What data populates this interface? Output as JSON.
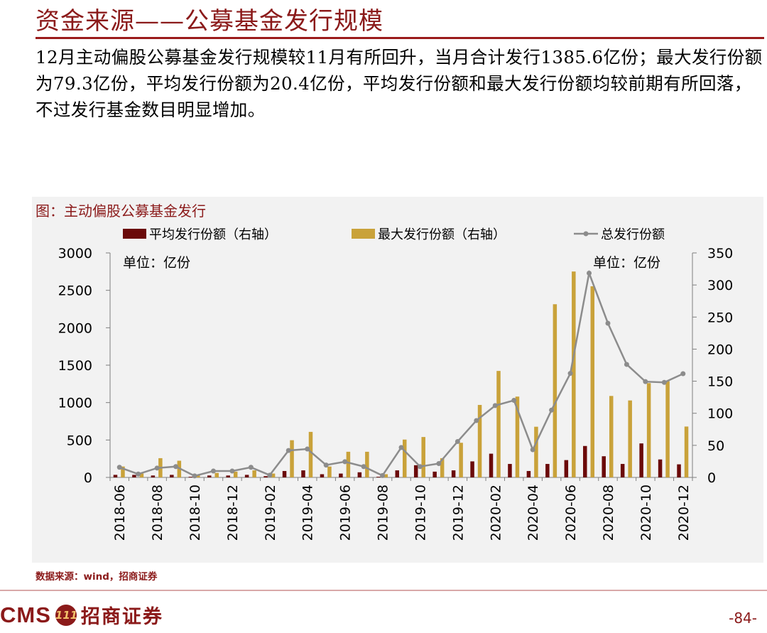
{
  "header": {
    "title": "资金来源——公募基金发行规模",
    "summary": "12月主动偏股公募基金发行规模较11月有所回升，当月合计发行1385.6亿份；最大发行份额为79.3亿份，平均发行份额为20.4亿份，平均发行份额和最大发行份额均较前期有所回落，不过发行基金数目明显增加。"
  },
  "chart_data": {
    "type": "bar",
    "title": "图：主动偏股公募基金发行",
    "categories": [
      "2018-06",
      "2018-07",
      "2018-08",
      "2018-09",
      "2018-10",
      "2018-11",
      "2018-12",
      "2019-01",
      "2019-02",
      "2019-03",
      "2019-04",
      "2019-05",
      "2019-06",
      "2019-07",
      "2019-08",
      "2019-09",
      "2019-10",
      "2019-11",
      "2019-12",
      "2020-01",
      "2020-02",
      "2020-03",
      "2020-04",
      "2020-05",
      "2020-06",
      "2020-07",
      "2020-08",
      "2020-09",
      "2020-10",
      "2020-11",
      "2020-12"
    ],
    "x_tick_labels": [
      "2018-06",
      "2018-08",
      "2018-10",
      "2018-12",
      "2019-02",
      "2019-04",
      "2019-06",
      "2019-08",
      "2019-10",
      "2019-12",
      "2020-02",
      "2020-04",
      "2020-06",
      "2020-08",
      "2020-10",
      "2020-12"
    ],
    "series": [
      {
        "name": "平均发行份额（右轴）",
        "kind": "bar",
        "axis": "right",
        "color": "#6b0a0a",
        "values": [
          4,
          4,
          3,
          4,
          1,
          3,
          3,
          4,
          2,
          10,
          11,
          5,
          6,
          8,
          1,
          11,
          19,
          9,
          11,
          25,
          37,
          21,
          10,
          21,
          27,
          49,
          33,
          21,
          53,
          28,
          20.4
        ]
      },
      {
        "name": "最大发行份额（右轴）",
        "kind": "bar",
        "axis": "right",
        "color": "#c9a23a",
        "values": [
          17,
          6,
          30,
          26,
          4,
          7,
          9,
          11,
          6,
          58,
          71,
          17,
          40,
          40,
          5,
          59,
          63,
          30,
          54,
          113,
          166,
          126,
          79,
          270,
          321,
          298,
          127,
          120,
          147,
          150,
          79.3
        ]
      },
      {
        "name": "总发行份额",
        "kind": "line",
        "axis": "left",
        "color": "#8c8c8c",
        "values": [
          135,
          45,
          125,
          145,
          20,
          85,
          85,
          135,
          30,
          360,
          380,
          165,
          210,
          145,
          25,
          400,
          145,
          185,
          480,
          760,
          960,
          1030,
          370,
          900,
          1390,
          2730,
          2060,
          1510,
          1280,
          1270,
          1385.6
        ]
      }
    ],
    "y_left": {
      "min": 0,
      "max": 3000,
      "step": 500,
      "ticks": [
        "0",
        "500",
        "1000",
        "1500",
        "2000",
        "2500",
        "3000"
      ],
      "unit": "单位：亿份"
    },
    "y_right": {
      "min": 0,
      "max": 350,
      "step": 50,
      "ticks": [
        "0",
        "50",
        "100",
        "150",
        "200",
        "250",
        "300",
        "350"
      ],
      "unit": "单位：亿份"
    },
    "legend_position": "top"
  },
  "source": "数据来源：wind，招商证券",
  "footer": {
    "logo_text": "CMS",
    "logo_mark": "111",
    "brand": "招商证券",
    "page_number": "-84-"
  }
}
